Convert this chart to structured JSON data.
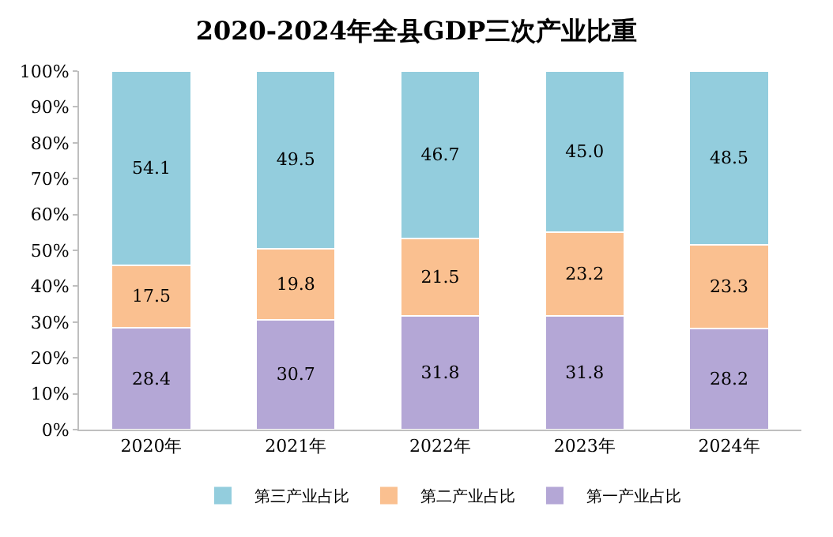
{
  "chart_data": {
    "type": "bar",
    "title": "2020-2024年全县GDP三次产业比重",
    "categories": [
      "2020年",
      "2021年",
      "2022年",
      "2023年",
      "2024年"
    ],
    "stacked": true,
    "ylim": [
      0,
      100
    ],
    "yticks": [
      {
        "value": 0,
        "label": "0%"
      },
      {
        "value": 10,
        "label": "10%"
      },
      {
        "value": 20,
        "label": "20%"
      },
      {
        "value": 30,
        "label": "30%"
      },
      {
        "value": 40,
        "label": "40%"
      },
      {
        "value": 50,
        "label": "50%"
      },
      {
        "value": 60,
        "label": "60%"
      },
      {
        "value": 70,
        "label": "70%"
      },
      {
        "value": 80,
        "label": "80%"
      },
      {
        "value": 90,
        "label": "90%"
      },
      {
        "value": 100,
        "label": "100%"
      }
    ],
    "series": [
      {
        "name": "第一产业占比",
        "color": "#b4a7d6",
        "values": [
          28.4,
          30.7,
          31.8,
          31.8,
          28.2
        ],
        "value_labels": [
          "28.4",
          "30.7",
          "31.8",
          "31.8",
          "28.2"
        ]
      },
      {
        "name": "第二产业占比",
        "color": "#fac090",
        "values": [
          17.5,
          19.8,
          21.5,
          23.2,
          23.3
        ],
        "value_labels": [
          "17.5",
          "19.8",
          "21.5",
          "23.2",
          "23.3"
        ]
      },
      {
        "name": "第三产业占比",
        "color": "#93cddd",
        "values": [
          54.1,
          49.5,
          46.7,
          45.0,
          48.5
        ],
        "value_labels": [
          "54.1",
          "49.5",
          "46.7",
          "45.0",
          "48.5"
        ]
      }
    ],
    "legend": "bottom",
    "grid": false
  }
}
